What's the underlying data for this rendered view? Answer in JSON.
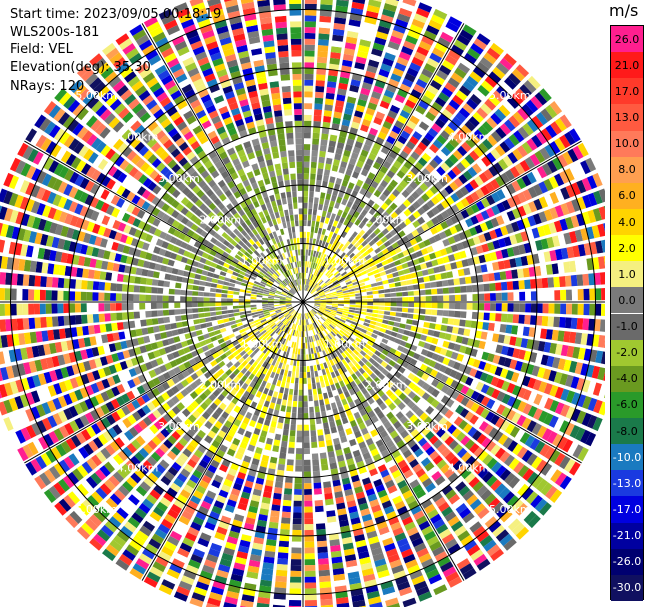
{
  "info": {
    "start_time": "Start time: 2023/09/05 00:18:19",
    "instrument": "WLS200s-181",
    "field": "Field: VEL",
    "elevation": "Elevation(deg): 35.30",
    "nrays": "NRays: 120"
  },
  "colorbar": {
    "unit": "m/s",
    "levels": [
      {
        "label": "26.0",
        "color": "#ff1f8f"
      },
      {
        "label": "21.0",
        "color": "#ff1a1a"
      },
      {
        "label": "17.0",
        "color": "#ff3a2a"
      },
      {
        "label": "13.0",
        "color": "#ff5a40"
      },
      {
        "label": "10.0",
        "color": "#ff7a5a"
      },
      {
        "label": "8.0",
        "color": "#ff9f50"
      },
      {
        "label": "6.0",
        "color": "#ffb020"
      },
      {
        "label": "4.0",
        "color": "#ffd400"
      },
      {
        "label": "2.0",
        "color": "#ffff00"
      },
      {
        "label": "1.0",
        "color": "#f5f080"
      },
      {
        "label": "0.0",
        "color": "#7a7a7a"
      },
      {
        "label": "-1.0",
        "color": "#6a6a6a"
      },
      {
        "label": "-2.0",
        "color": "#a0c830"
      },
      {
        "label": "-4.0",
        "color": "#6a9a20"
      },
      {
        "label": "-6.0",
        "color": "#2a9a2a"
      },
      {
        "label": "-8.0",
        "color": "#1a7a4a"
      },
      {
        "label": "-10.0",
        "color": "#1a7ac0"
      },
      {
        "label": "-13.0",
        "color": "#1a3ae0"
      },
      {
        "label": "-17.0",
        "color": "#0000e0"
      },
      {
        "label": "-21.0",
        "color": "#0000a0"
      },
      {
        "label": "-26.0",
        "color": "#000070"
      },
      {
        "label": "-30.0",
        "color": "#101060"
      }
    ]
  },
  "chart_data": {
    "type": "heatmap",
    "projection": "polar-ppi",
    "field": "VEL",
    "unit": "m/s",
    "nrays": 120,
    "range_rings_km": [
      1.0,
      2.0,
      3.0,
      4.0,
      5.0
    ],
    "ring_labels": [
      "1.00km",
      "2.00km",
      "3.00km",
      "4.00km",
      "5.00km"
    ],
    "max_range_km": 5.5,
    "azimuth_lines_deg": [
      0,
      30,
      60,
      90,
      120,
      150,
      180,
      210,
      240,
      270,
      300,
      330
    ],
    "regions": [
      {
        "range_km": [
          0.0,
          1.5
        ],
        "dominant": "yellow/gray mix"
      },
      {
        "range_km": [
          1.5,
          3.1
        ],
        "dominant": "gray/green/yellow mix"
      },
      {
        "range_km": [
          3.1,
          5.5
        ],
        "dominant": "noise (all colors)"
      }
    ],
    "clim": [
      -30.0,
      26.0
    ]
  }
}
